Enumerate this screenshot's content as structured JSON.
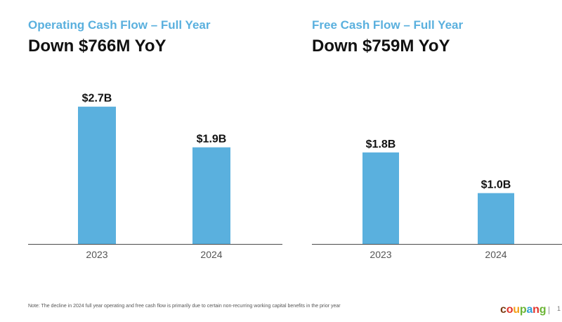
{
  "footnote": "Note: The decline in 2024 full year operating and free cash flow is primarily due to certain non-recurring working capital benefits in the prior year",
  "brand": {
    "parts": [
      "c",
      "o",
      "u",
      "p",
      "a",
      "n",
      "g"
    ],
    "colors": [
      "#7a3b12",
      "#e2322b",
      "#f4a11a",
      "#6bb535",
      "#2f9fd8",
      "#e2322b",
      "#6bb535"
    ]
  },
  "page_number": "1",
  "colors": {
    "bar": "#5ab0de",
    "subtitle": "#5ab0de",
    "baseline": "#4a4a4a"
  },
  "chart_data": [
    {
      "type": "bar",
      "subtitle": "Operating Cash Flow – Full Year",
      "title": "Down $766M YoY",
      "categories": [
        "2023",
        "2024"
      ],
      "values": [
        2.7,
        1.9
      ],
      "data_labels": [
        "$2.7B",
        "$1.9B"
      ],
      "unit": "B",
      "ylim": [
        0,
        3.0
      ],
      "grid": false,
      "legend": "none"
    },
    {
      "type": "bar",
      "subtitle": "Free Cash Flow – Full Year",
      "title": "Down $759M YoY",
      "categories": [
        "2023",
        "2024"
      ],
      "values": [
        1.8,
        1.0
      ],
      "data_labels": [
        "$1.8B",
        "$1.0B"
      ],
      "unit": "B",
      "ylim": [
        0,
        3.0
      ],
      "grid": false,
      "legend": "none"
    }
  ]
}
